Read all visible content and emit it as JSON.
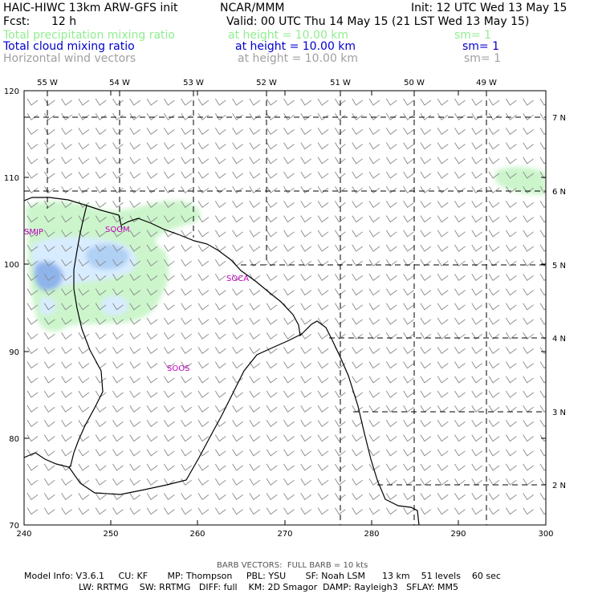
{
  "header": {
    "model": "HAIC-HIWC 13km ARW-GFS init",
    "center": "NCAR/MMM",
    "init": "Init: 12 UTC Wed 13 May 15",
    "fcst_label": "Fcst:",
    "fcst_value": "12 h",
    "valid": "Valid: 00 UTC Thu 14 May 15 (21 LST Wed 13 May 15)"
  },
  "fields": [
    {
      "name": "Total precipitation mixing ratio",
      "level": "at height = 10.00 km",
      "sm": "sm= 1",
      "color": "#90ee90"
    },
    {
      "name": "Total cloud mixing ratio",
      "level": "at height = 10.00 km",
      "sm": "sm= 1",
      "color": "#0000cc"
    },
    {
      "name": "Horizontal wind vectors",
      "level": "at height = 10.00 km",
      "sm": "sm= 1",
      "color": "#a0a0a0"
    }
  ],
  "axes": {
    "x_ticks": [
      "240",
      "250",
      "260",
      "270",
      "280",
      "290",
      "300"
    ],
    "y_ticks": [
      "70",
      "80",
      "90",
      "100",
      "110",
      "120"
    ],
    "lon_labels": [
      "55 W",
      "54 W",
      "53 W",
      "52 W",
      "51 W",
      "50 W",
      "49 W"
    ],
    "lat_labels": [
      "7 N",
      "6 N",
      "5 N",
      "4 N",
      "3 N",
      "2 N"
    ]
  },
  "stations": [
    "SMJP",
    "SOGM",
    "SOCA",
    "SOOS"
  ],
  "footer": {
    "barb": "BARB VECTORS:  FULL BARB = 10 kts",
    "line1": "Model Info: V3.6.1     CU: KF       MP: Thompson     PBL: YSU       SF: Noah LSM      13 km    51 levels    60 sec",
    "line2": "LW: RRTMG    SW: RRTMG   DIFF: full    KM: 2D Smagor  DAMP: Rayleigh3   SFLAY: MM5"
  },
  "colors": {
    "precip": "#ccf5cc",
    "cloud_light": "#d8ecff",
    "cloud_mid": "#b0d0f4",
    "cloud_dark": "#8fb4ec",
    "station": "#c000c0",
    "barb": "#888888"
  }
}
